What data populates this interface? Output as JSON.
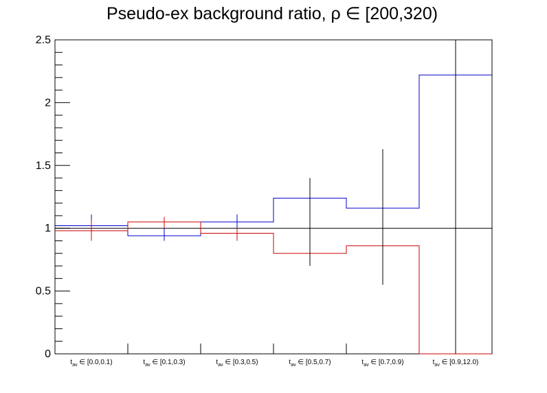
{
  "chart_data": {
    "type": "step",
    "title": "Pseudo-ex background ratio,   ρ ∈ [200,320)",
    "xlabel": "",
    "ylabel": "",
    "ylim": [
      0,
      2.5
    ],
    "y_ticks": [
      "0",
      "0.5",
      "1",
      "1.5",
      "2",
      "2.5"
    ],
    "y_tick_values": [
      0,
      0.5,
      1,
      1.5,
      2,
      2.5
    ],
    "grid": false,
    "reference_line": 1,
    "categories": [
      {
        "sym": "t",
        "sub": "av",
        "rest": " ∈ [0.0,0.1)"
      },
      {
        "sym": "t",
        "sub": "av",
        "rest": " ∈ [0.1,0.3)"
      },
      {
        "sym": "t",
        "sub": "av",
        "rest": " ∈ [0.3,0.5)"
      },
      {
        "sym": "t",
        "sub": "av",
        "rest": " ∈ [0.5,0.7)"
      },
      {
        "sym": "t",
        "sub": "av",
        "rest": " ∈ [0.7,0.9)"
      },
      {
        "sym": "t",
        "sub": "av",
        "rest": " ∈ [0.9,12.0)"
      }
    ],
    "series": [
      {
        "color": "#0000cc",
        "values": [
          1.02,
          0.94,
          1.05,
          1.24,
          1.16,
          2.22
        ]
      },
      {
        "color": "#cc0000",
        "values": [
          0.98,
          1.05,
          0.96,
          0.8,
          0.86,
          0.0
        ]
      }
    ],
    "error_bars": [
      {
        "series": 0,
        "center": 1.02,
        "low": 0.93,
        "high": 1.11,
        "color": "#0000cc"
      },
      {
        "series": 1,
        "center": 0.98,
        "low": 0.9,
        "high": 1.07,
        "color": "#cc0000"
      },
      {
        "series": 1,
        "center": 1.05,
        "low": 0.96,
        "high": 1.09,
        "color": "#cc0000"
      },
      {
        "series": 0,
        "center": 0.94,
        "low": 0.9,
        "high": 1.0,
        "color": "#0000cc"
      },
      {
        "series": 0,
        "center": 1.05,
        "low": 1.0,
        "high": 1.11,
        "color": "#0000cc"
      },
      {
        "series": 1,
        "center": 0.96,
        "low": 0.9,
        "high": 1.0,
        "color": "#cc0000"
      },
      {
        "series": 0,
        "center": 1.24,
        "low": 1.0,
        "high": 1.4,
        "color": "#000000"
      },
      {
        "series": 1,
        "center": 0.8,
        "low": 0.7,
        "high": 1.0,
        "color": "#000000"
      },
      {
        "series": 0,
        "center": 1.16,
        "low": 1.0,
        "high": 1.63,
        "color": "#000000"
      },
      {
        "series": 1,
        "center": 0.86,
        "low": 0.55,
        "high": 1.0,
        "color": "#000000"
      },
      {
        "series": 0,
        "center": 2.22,
        "low": 0.0,
        "high": 2.5,
        "color": "#000000"
      }
    ],
    "error_bar_bins": [
      0,
      0,
      1,
      1,
      2,
      2,
      3,
      3,
      4,
      4,
      5
    ]
  }
}
